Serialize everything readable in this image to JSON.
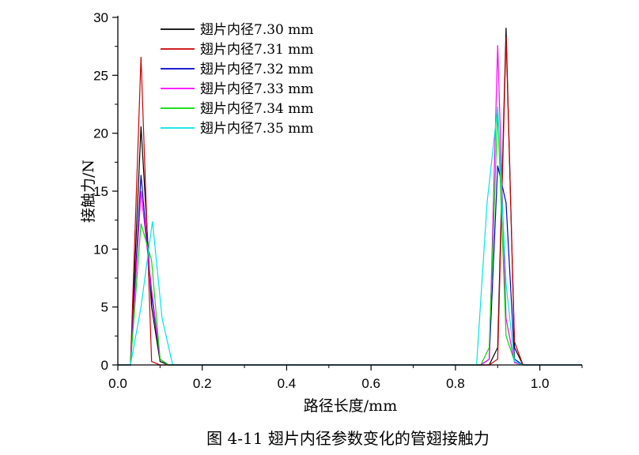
{
  "chart_data": {
    "type": "line",
    "title": "",
    "xlabel": "路径长度/mm",
    "ylabel": "接触力/N",
    "xlim": [
      0,
      1.1
    ],
    "ylim": [
      0,
      30
    ],
    "xticks": [
      0.0,
      0.2,
      0.4,
      0.6,
      0.8,
      1.0
    ],
    "xtick_labels": [
      "0.0",
      "0.2",
      "0.4",
      "0.6",
      "0.8",
      "1.0"
    ],
    "yticks": [
      0,
      5,
      10,
      15,
      20,
      25,
      30
    ],
    "ytick_labels": [
      "0",
      "5",
      "10",
      "15",
      "20",
      "25",
      "30"
    ],
    "grid": false,
    "legend_position": "top-left",
    "caption": "图 4-11  翅片内径参数变化的管翅接触力",
    "series": [
      {
        "name": "翅片内径7.30 mm",
        "color": "#000000",
        "x": [
          0,
          0.03,
          0.055,
          0.08,
          0.1,
          0.12,
          0.86,
          0.88,
          0.9,
          0.92,
          0.94,
          0.96,
          1.1
        ],
        "y": [
          0,
          0,
          20.6,
          5.0,
          0.3,
          0,
          0,
          0,
          1.5,
          29.1,
          1.5,
          0,
          0
        ]
      },
      {
        "name": "翅片内径7.31 mm",
        "color": "#cc0000",
        "x": [
          0,
          0.03,
          0.055,
          0.08,
          0.1,
          0.12,
          0.86,
          0.88,
          0.9,
          0.92,
          0.94,
          0.96,
          1.1
        ],
        "y": [
          0,
          0,
          26.6,
          0.3,
          0,
          0,
          0,
          0,
          0.5,
          28.3,
          2.0,
          0,
          0
        ]
      },
      {
        "name": "翅片内径7.32 mm",
        "color": "#0000cc",
        "x": [
          0,
          0.03,
          0.055,
          0.08,
          0.1,
          0.12,
          0.86,
          0.88,
          0.9,
          0.92,
          0.94,
          0.96,
          1.1
        ],
        "y": [
          0,
          0,
          16.4,
          6.0,
          0.5,
          0,
          0,
          0.5,
          17.2,
          14.0,
          0.5,
          0,
          0
        ]
      },
      {
        "name": "翅片内径7.33 mm",
        "color": "#ff00ff",
        "x": [
          0,
          0.03,
          0.055,
          0.08,
          0.1,
          0.12,
          0.86,
          0.88,
          0.9,
          0.92,
          0.94,
          0.96,
          1.1
        ],
        "y": [
          0,
          0,
          15.0,
          6.5,
          0.5,
          0,
          0,
          0.5,
          27.6,
          4.0,
          0.2,
          0,
          0
        ]
      },
      {
        "name": "翅片内径7.34 mm",
        "color": "#00dd00",
        "x": [
          0,
          0.03,
          0.055,
          0.08,
          0.1,
          0.12,
          0.86,
          0.88,
          0.9,
          0.92,
          0.94,
          0.96,
          1.1
        ],
        "y": [
          0,
          0,
          12.2,
          9.0,
          0.5,
          0,
          0,
          1.5,
          22.0,
          2.5,
          0.3,
          0,
          0
        ]
      },
      {
        "name": "翅片内径7.35 mm",
        "color": "#00e5e5",
        "x": [
          0,
          0.03,
          0.055,
          0.082,
          0.105,
          0.13,
          0.85,
          0.875,
          0.9,
          0.92,
          0.94,
          0.96,
          1.1
        ],
        "y": [
          0,
          0,
          5.0,
          12.4,
          4.0,
          0,
          0,
          14.0,
          22.3,
          7.0,
          0.3,
          0,
          0
        ]
      }
    ]
  }
}
